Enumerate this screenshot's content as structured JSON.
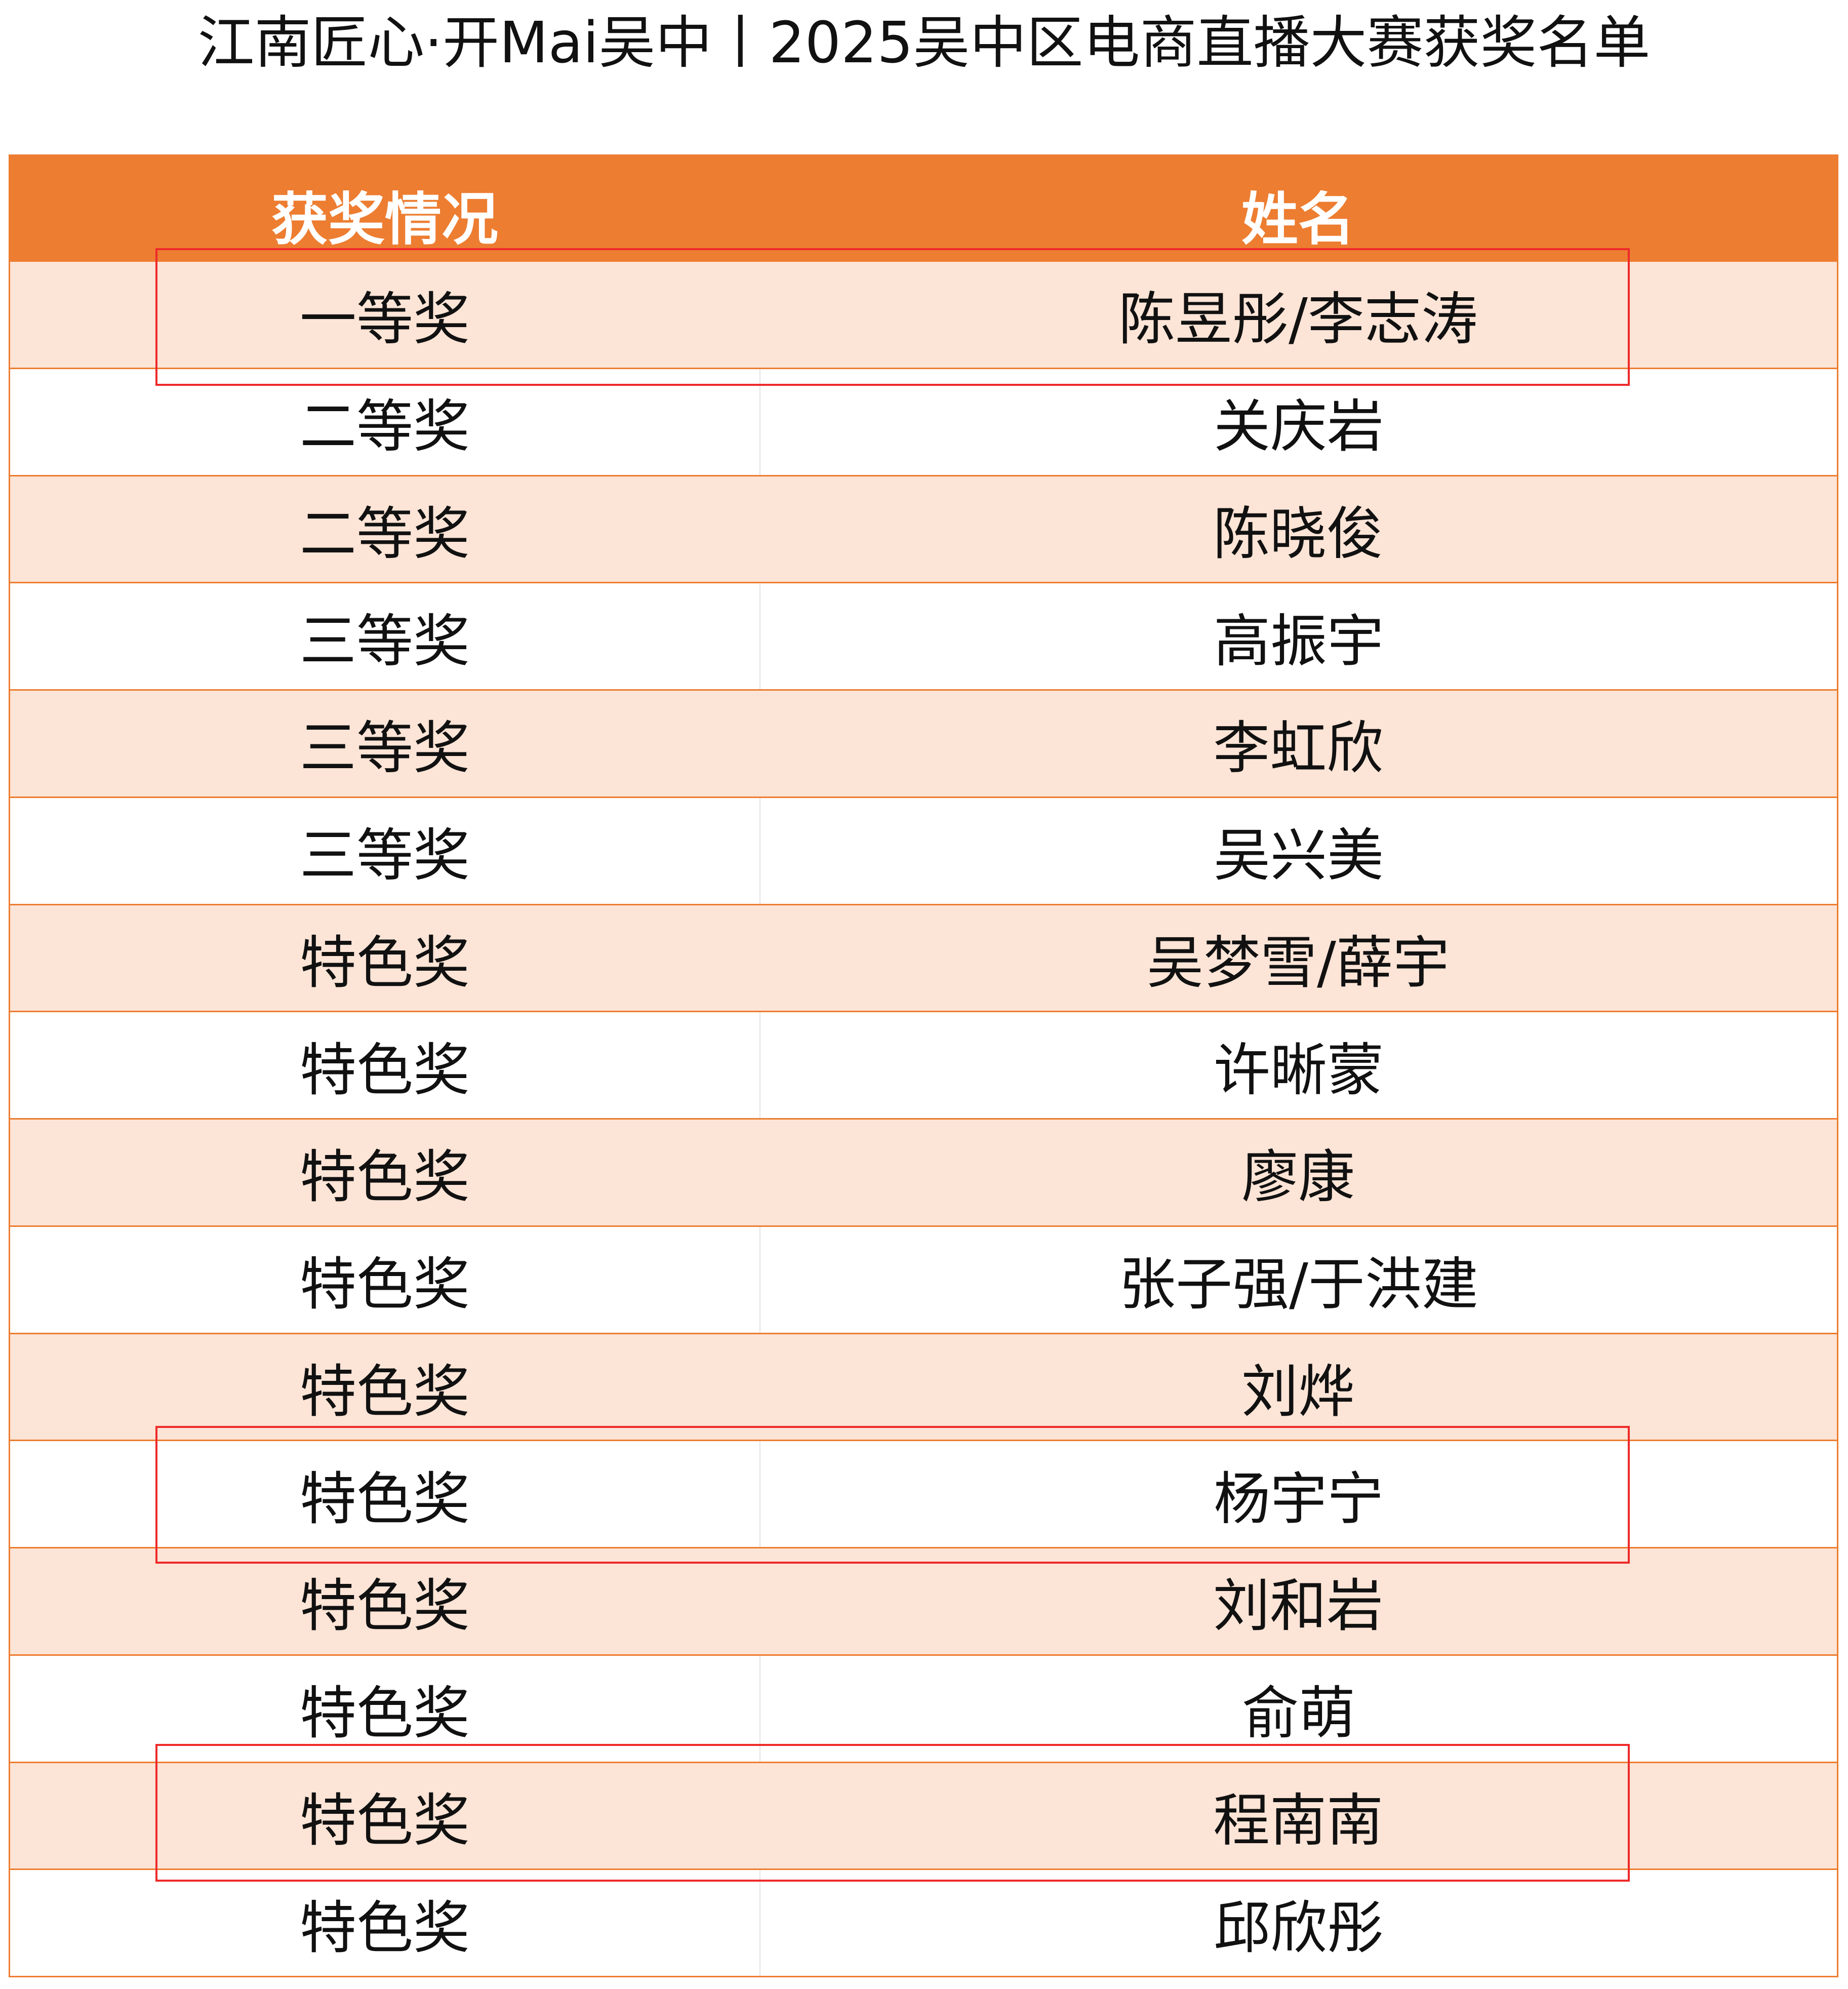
{
  "title": "江南匠心·开Mai吴中丨2025吴中区电商直播大赛获奖名单",
  "table": {
    "headers": [
      "获奖情况",
      "姓名"
    ],
    "rows": [
      {
        "award": "一等奖",
        "name": "陈昱彤/李志涛",
        "highlighted": true
      },
      {
        "award": "二等奖",
        "name": "关庆岩"
      },
      {
        "award": "二等奖",
        "name": "陈晓俊"
      },
      {
        "award": "三等奖",
        "name": "高振宇"
      },
      {
        "award": "三等奖",
        "name": "李虹欣"
      },
      {
        "award": "三等奖",
        "name": "吴兴美"
      },
      {
        "award": "特色奖",
        "name": "吴梦雪/薛宇"
      },
      {
        "award": "特色奖",
        "name": "许晰蒙"
      },
      {
        "award": "特色奖",
        "name": "廖康"
      },
      {
        "award": "特色奖",
        "name": "张子强/于洪建"
      },
      {
        "award": "特色奖",
        "name": "刘烨"
      },
      {
        "award": "特色奖",
        "name": "杨宇宁",
        "highlighted": true
      },
      {
        "award": "特色奖",
        "name": "刘和岩"
      },
      {
        "award": "特色奖",
        "name": "俞萌"
      },
      {
        "award": "特色奖",
        "name": "程南南",
        "highlighted": true
      },
      {
        "award": "特色奖",
        "name": "邱欣彤"
      }
    ]
  },
  "colors": {
    "header_bg": "#ED7D31",
    "stripe": "#FCE4D6",
    "highlight_box": "#EE2A2A"
  }
}
